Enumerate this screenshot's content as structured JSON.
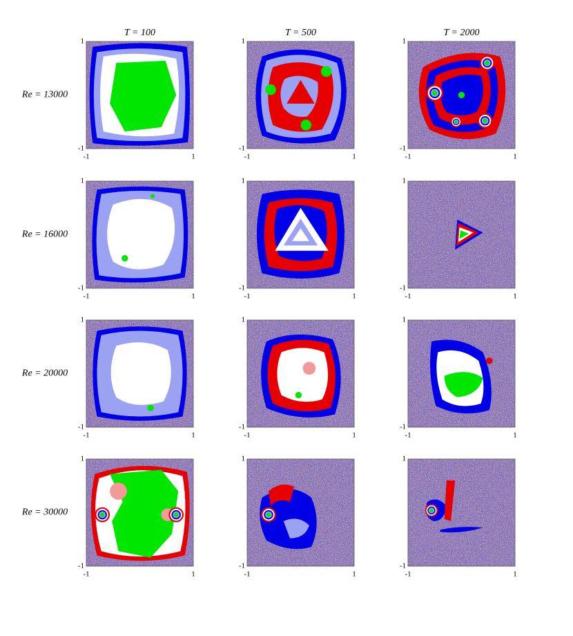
{
  "column_titles": [
    "T = 100",
    "T = 500",
    "T = 2000"
  ],
  "row_labels": [
    "Re = 13000",
    "Re = 16000",
    "Re = 20000",
    "Re = 30000"
  ],
  "ticks": [
    -1,
    1
  ]
}
